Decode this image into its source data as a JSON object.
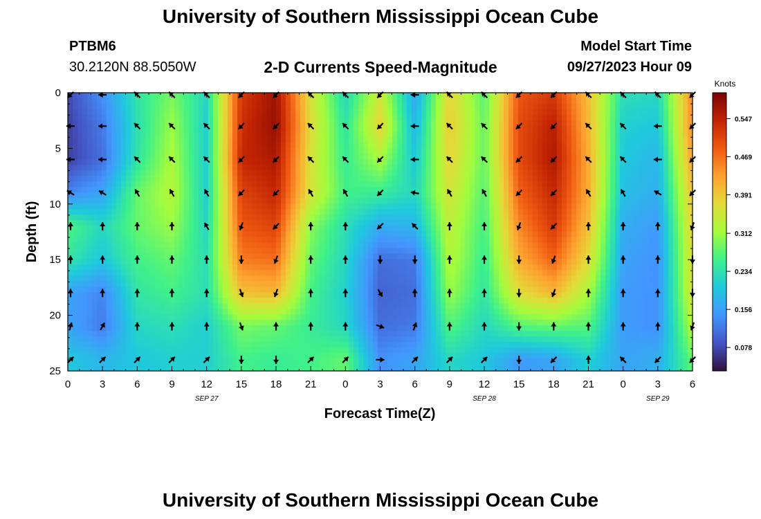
{
  "header": {
    "title": "University of Southern Mississippi Ocean Cube",
    "station": "PTBM6",
    "coordinates": "30.2120N  88.5050W",
    "subtitle": "2-D Currents Speed-Magnitude",
    "model_start_label": "Model Start Time",
    "model_start_value": "09/27/2023 Hour 09"
  },
  "footer": {
    "title": "University of Southern Mississippi Ocean Cube"
  },
  "chart_data": {
    "type": "heatmap",
    "title": "2-D Currents Speed-Magnitude",
    "xlabel": "Forecast Time(Z)",
    "ylabel": "Depth (ft)",
    "x_ticks": [
      "0",
      "3",
      "6",
      "9",
      "12",
      "15",
      "18",
      "21",
      "0",
      "3",
      "6",
      "9",
      "12",
      "15",
      "18",
      "21",
      "0",
      "3",
      "6"
    ],
    "x_hours": [
      0,
      3,
      6,
      9,
      12,
      15,
      18,
      21,
      24,
      27,
      30,
      33,
      36,
      39,
      42,
      45,
      48,
      51,
      54
    ],
    "date_labels": [
      {
        "label": "SEP 27",
        "hour": 12
      },
      {
        "label": "SEP 28",
        "hour": 36
      },
      {
        "label": "SEP 29",
        "hour": 51
      }
    ],
    "y_ticks": [
      "0",
      "5",
      "10",
      "15",
      "20",
      "25"
    ],
    "y_values": [
      0,
      5,
      10,
      15,
      20,
      25
    ],
    "xlim": [
      0,
      54
    ],
    "ylim": [
      0,
      25
    ],
    "colorbar": {
      "label": "Knots",
      "ticks": [
        "0.547",
        "0.469",
        "0.391",
        "0.312",
        "0.234",
        "0.156",
        "0.078"
      ],
      "tick_values": [
        0.547,
        0.469,
        0.391,
        0.312,
        0.234,
        0.156,
        0.078
      ],
      "range": [
        0.03,
        0.6
      ],
      "stops": [
        "#30123b",
        "#4454c4",
        "#4396fe",
        "#1fc9dd",
        "#3ef08b",
        "#a4fc3c",
        "#e2dc38",
        "#fea331",
        "#ef5911",
        "#c22403",
        "#7a0403"
      ]
    },
    "rows_depth_ft": [
      0,
      3,
      6,
      9,
      12,
      15,
      18,
      21,
      24
    ],
    "speed_knots": [
      [
        0.08,
        0.14,
        0.24,
        0.29,
        0.22,
        0.52,
        0.57,
        0.36,
        0.22,
        0.35,
        0.16,
        0.38,
        0.27,
        0.49,
        0.52,
        0.4,
        0.23,
        0.22,
        0.45
      ],
      [
        0.07,
        0.12,
        0.23,
        0.31,
        0.21,
        0.53,
        0.58,
        0.37,
        0.24,
        0.38,
        0.18,
        0.39,
        0.28,
        0.5,
        0.55,
        0.41,
        0.21,
        0.2,
        0.45
      ],
      [
        0.07,
        0.11,
        0.24,
        0.32,
        0.21,
        0.54,
        0.56,
        0.36,
        0.25,
        0.32,
        0.2,
        0.38,
        0.28,
        0.5,
        0.56,
        0.42,
        0.2,
        0.18,
        0.43
      ],
      [
        0.13,
        0.16,
        0.28,
        0.33,
        0.21,
        0.51,
        0.54,
        0.36,
        0.26,
        0.25,
        0.22,
        0.36,
        0.27,
        0.48,
        0.54,
        0.42,
        0.19,
        0.17,
        0.4
      ],
      [
        0.27,
        0.22,
        0.28,
        0.31,
        0.22,
        0.49,
        0.51,
        0.3,
        0.23,
        0.17,
        0.18,
        0.34,
        0.26,
        0.45,
        0.52,
        0.4,
        0.17,
        0.15,
        0.38
      ],
      [
        0.24,
        0.2,
        0.26,
        0.28,
        0.23,
        0.46,
        0.47,
        0.28,
        0.22,
        0.11,
        0.12,
        0.33,
        0.25,
        0.42,
        0.48,
        0.37,
        0.16,
        0.14,
        0.37
      ],
      [
        0.16,
        0.13,
        0.24,
        0.26,
        0.23,
        0.4,
        0.41,
        0.26,
        0.21,
        0.1,
        0.11,
        0.31,
        0.24,
        0.37,
        0.41,
        0.32,
        0.15,
        0.14,
        0.36
      ],
      [
        0.16,
        0.12,
        0.22,
        0.23,
        0.21,
        0.29,
        0.28,
        0.25,
        0.22,
        0.11,
        0.12,
        0.27,
        0.22,
        0.27,
        0.28,
        0.27,
        0.15,
        0.14,
        0.33
      ],
      [
        0.2,
        0.18,
        0.2,
        0.21,
        0.21,
        0.26,
        0.25,
        0.26,
        0.28,
        0.14,
        0.16,
        0.22,
        0.2,
        0.15,
        0.16,
        0.21,
        0.16,
        0.17,
        0.28
      ]
    ],
    "direction_deg": [
      [
        225,
        270,
        315,
        315,
        315,
        225,
        225,
        315,
        315,
        225,
        270,
        315,
        315,
        225,
        225,
        315,
        315,
        315,
        225
      ],
      [
        270,
        270,
        315,
        315,
        315,
        225,
        225,
        315,
        315,
        225,
        270,
        315,
        315,
        225,
        225,
        315,
        315,
        270,
        225
      ],
      [
        270,
        270,
        315,
        315,
        315,
        225,
        225,
        315,
        315,
        225,
        270,
        315,
        315,
        225,
        225,
        315,
        315,
        270,
        225
      ],
      [
        300,
        300,
        330,
        330,
        330,
        225,
        225,
        330,
        330,
        225,
        280,
        330,
        330,
        225,
        225,
        330,
        330,
        300,
        225
      ],
      [
        0,
        0,
        0,
        0,
        330,
        200,
        225,
        0,
        0,
        225,
        315,
        0,
        0,
        200,
        225,
        0,
        0,
        0,
        200
      ],
      [
        0,
        0,
        0,
        0,
        0,
        180,
        200,
        0,
        0,
        180,
        180,
        0,
        0,
        180,
        200,
        0,
        0,
        0,
        180
      ],
      [
        0,
        0,
        0,
        0,
        0,
        160,
        200,
        0,
        0,
        150,
        0,
        0,
        0,
        180,
        200,
        0,
        0,
        0,
        180
      ],
      [
        15,
        30,
        0,
        0,
        0,
        160,
        0,
        0,
        0,
        110,
        20,
        0,
        0,
        180,
        0,
        0,
        0,
        0,
        200
      ],
      [
        45,
        45,
        45,
        45,
        45,
        180,
        180,
        45,
        45,
        90,
        45,
        45,
        45,
        180,
        225,
        0,
        315,
        225,
        225
      ]
    ]
  }
}
